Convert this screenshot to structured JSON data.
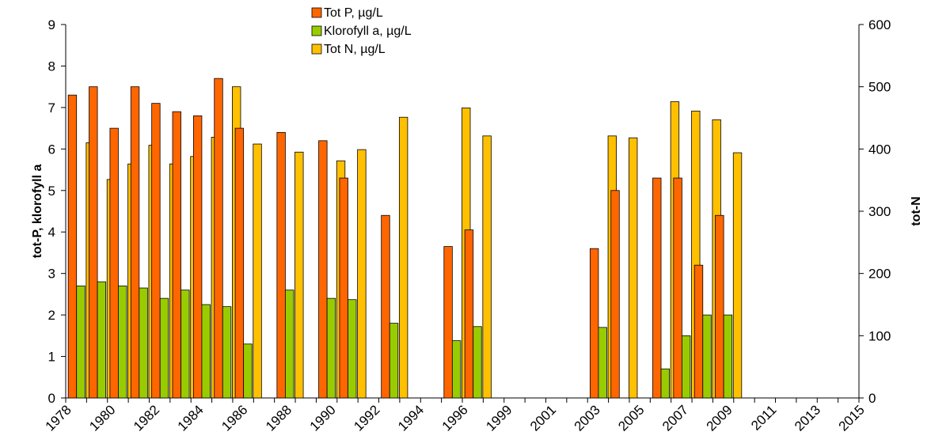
{
  "chart_data": {
    "type": "bar",
    "y_left_label": "tot-P, klorofyll a",
    "y_right_label": "tot-N",
    "y_left_lim": [
      0,
      9
    ],
    "y_left_ticks": [
      "0",
      "1",
      "2",
      "3",
      "4",
      "5",
      "6",
      "7",
      "8",
      "9"
    ],
    "y_right_lim": [
      0,
      600
    ],
    "y_right_ticks": [
      "0",
      "100",
      "200",
      "300",
      "400",
      "500",
      "600"
    ],
    "x_tick_labels": [
      "1978",
      "1980",
      "1982",
      "1984",
      "1986",
      "1988",
      "1990",
      "1992",
      "1994",
      "1996",
      "1999",
      "2001",
      "2003",
      "2005",
      "2007",
      "2009",
      "2011",
      "2013",
      "2015"
    ],
    "categories": [
      "1978",
      "1979",
      "1980",
      "1981",
      "1982",
      "1983",
      "1984",
      "1985",
      "1986",
      "1987",
      "1988",
      "1989",
      "1990",
      "1991",
      "1992",
      "1993",
      "1994",
      "1995",
      "1996",
      "1997",
      "1998",
      "1999",
      "2000",
      "2001",
      "2002",
      "2003",
      "2004",
      "2005",
      "2006",
      "2007",
      "2008",
      "2009",
      "2010",
      "2011",
      "2012",
      "2013",
      "2014",
      "2015"
    ],
    "legend_position": "top-center",
    "grid": false,
    "series": [
      {
        "name": "Tot P, µg/L",
        "axis": "left",
        "color": "#ff6600",
        "values": [
          7.3,
          7.5,
          6.5,
          7.5,
          7.1,
          6.9,
          6.8,
          7.7,
          6.5,
          null,
          6.4,
          null,
          6.2,
          5.3,
          null,
          4.4,
          null,
          null,
          3.65,
          4.05,
          null,
          null,
          null,
          null,
          null,
          3.6,
          5.0,
          null,
          5.3,
          5.3,
          3.2,
          4.4,
          null,
          null,
          null,
          null,
          null,
          null
        ]
      },
      {
        "name": "Klorofyll a, µg/L",
        "axis": "left",
        "color": "#99cc00",
        "values": [
          2.7,
          2.8,
          2.7,
          2.65,
          2.4,
          2.6,
          2.25,
          2.2,
          1.3,
          null,
          2.6,
          null,
          2.4,
          2.37,
          null,
          1.8,
          null,
          null,
          1.38,
          1.72,
          null,
          null,
          null,
          null,
          null,
          1.7,
          null,
          null,
          0.7,
          1.5,
          2.0,
          2.0,
          null,
          null,
          null,
          null,
          null,
          null
        ]
      },
      {
        "name": "Tot N, µg/L",
        "axis": "right",
        "color": "#ffc000",
        "values": [
          410,
          351,
          376,
          406,
          376,
          388,
          419,
          500,
          408,
          null,
          395,
          null,
          381,
          399,
          null,
          451,
          null,
          null,
          466,
          421,
          null,
          null,
          null,
          null,
          null,
          421,
          418,
          null,
          476,
          461,
          447,
          394,
          null,
          null,
          null,
          null,
          null,
          null
        ]
      }
    ]
  }
}
